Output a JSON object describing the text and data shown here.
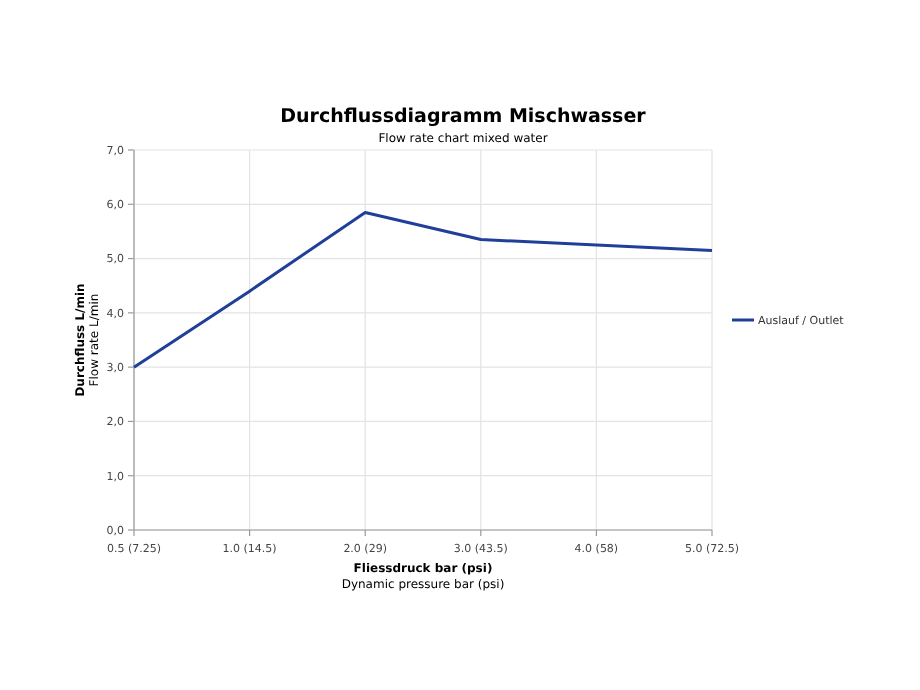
{
  "chart_data": {
    "type": "line",
    "title": "Durchflussdiagramm Mischwasser",
    "subtitle": "Flow rate chart mixed water",
    "xlabel": "Fliessdruck bar (psi)\nDynamic pressure bar (psi)",
    "ylabel": "Durchfluss L/min\nFlow rate L/min",
    "categories": [
      "0.5 (7.25)",
      "1.0 (14.5)",
      "2.0 (29)",
      "3.0 (43.5)",
      "4.0 (58)",
      "5.0 (72.5)"
    ],
    "series": [
      {
        "name": "Auslauf / Outlet",
        "color": "#1f3f99",
        "values": [
          3.0,
          4.4,
          5.85,
          5.35,
          5.25,
          5.15
        ]
      }
    ],
    "ylim": [
      0,
      7
    ],
    "yticks": [
      {
        "value": 0,
        "label": "0,0"
      },
      {
        "value": 1,
        "label": "1,0"
      },
      {
        "value": 2,
        "label": "2,0"
      },
      {
        "value": 3,
        "label": "3,0"
      },
      {
        "value": 4,
        "label": "4,0"
      },
      {
        "value": 5,
        "label": "5,0"
      },
      {
        "value": 6,
        "label": "6,0"
      },
      {
        "value": 7,
        "label": "7,0"
      }
    ],
    "grid": true,
    "legend": "right",
    "marker": "none",
    "line_style": "solid"
  }
}
